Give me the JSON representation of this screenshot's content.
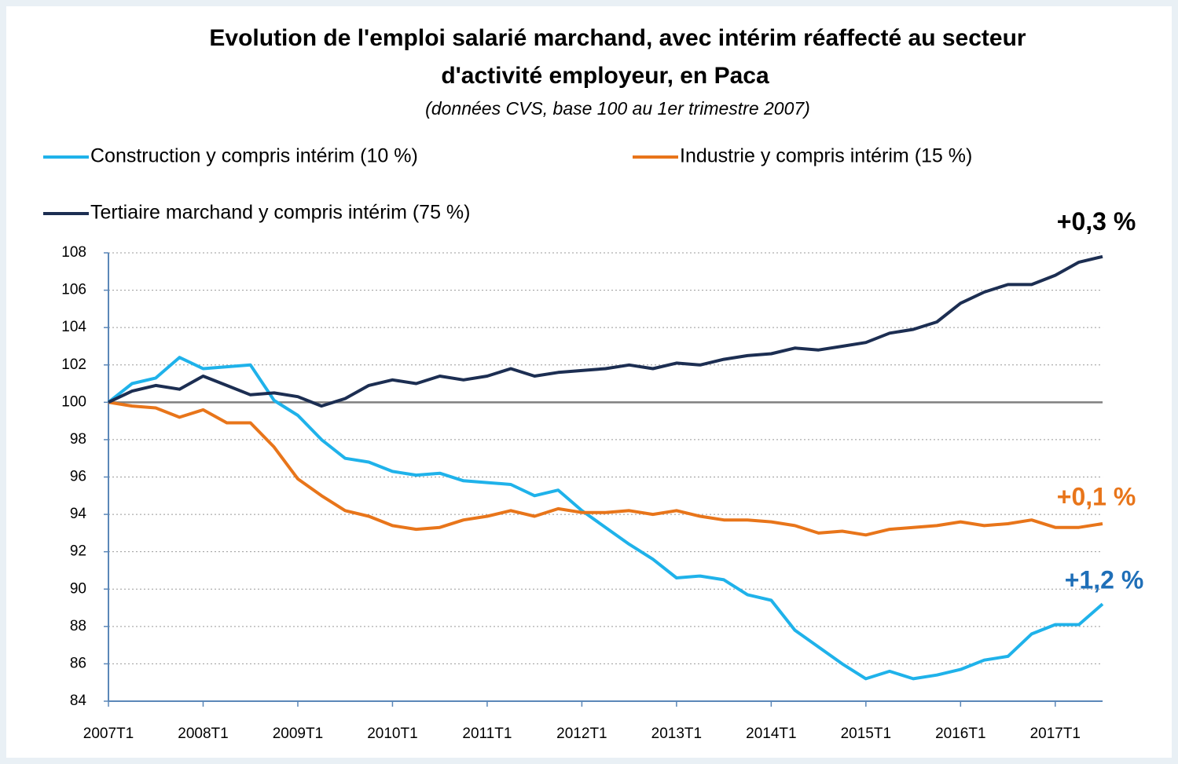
{
  "chart_data": {
    "type": "line",
    "title": "Evolution de l'emploi salarié marchand, avec intérim réaffecté au secteur",
    "title_line2": "d'activité employeur, en Paca",
    "subtitle": "(données CVS, base 100 au 1er trimestre 2007)",
    "categories": [
      "2007T1",
      null,
      null,
      null,
      "2008T1",
      null,
      null,
      null,
      "2009T1",
      null,
      null,
      null,
      "2010T1",
      null,
      null,
      null,
      "2011T1",
      null,
      null,
      null,
      "2012T1",
      null,
      null,
      null,
      "2013T1",
      null,
      null,
      null,
      "2014T1",
      null,
      null,
      null,
      "2015T1",
      null,
      null,
      null,
      "2016T1",
      null,
      null,
      null,
      "2017T1",
      null,
      null
    ],
    "series": [
      {
        "name": "Construction y  compris intérim (10 %)",
        "color": "#1fb2ea",
        "end_label": "+1,2 %",
        "end_label_color": "#1f6fb8",
        "values": [
          100,
          101.0,
          101.3,
          102.4,
          101.8,
          101.9,
          102.0,
          100.1,
          99.3,
          98.0,
          97.0,
          96.8,
          96.3,
          96.1,
          96.2,
          95.8,
          95.7,
          95.6,
          95.0,
          95.3,
          94.2,
          93.3,
          92.4,
          91.6,
          90.6,
          90.7,
          90.5,
          89.7,
          89.4,
          87.8,
          86.9,
          86.0,
          85.2,
          85.6,
          85.2,
          85.4,
          85.7,
          86.2,
          86.4,
          87.6,
          88.1,
          88.1,
          89.2
        ]
      },
      {
        "name": "Industrie y compris intérim (15 %)",
        "color": "#e8751a",
        "end_label": "+0,1 %",
        "end_label_color": "#e8751a",
        "values": [
          100,
          99.8,
          99.7,
          99.2,
          99.6,
          98.9,
          98.9,
          97.6,
          95.9,
          95.0,
          94.2,
          93.9,
          93.4,
          93.2,
          93.3,
          93.7,
          93.9,
          94.2,
          93.9,
          94.3,
          94.1,
          94.1,
          94.2,
          94.0,
          94.2,
          93.9,
          93.7,
          93.7,
          93.6,
          93.4,
          93.0,
          93.1,
          92.9,
          93.2,
          93.3,
          93.4,
          93.6,
          93.4,
          93.5,
          93.7,
          93.3,
          93.3,
          93.5
        ]
      },
      {
        "name": "Tertiaire marchand y compris intérim (75 %)",
        "color": "#1c2e52",
        "end_label": "+0,3 %",
        "end_label_color": "#000000",
        "values": [
          100,
          100.6,
          100.9,
          100.7,
          101.4,
          100.9,
          100.4,
          100.5,
          100.3,
          99.8,
          100.2,
          100.9,
          101.2,
          101.0,
          101.4,
          101.2,
          101.4,
          101.8,
          101.4,
          101.6,
          101.7,
          101.8,
          102.0,
          101.8,
          102.1,
          102.0,
          102.3,
          102.5,
          102.6,
          102.9,
          102.8,
          103.0,
          103.2,
          103.7,
          103.9,
          104.3,
          105.3,
          105.9,
          106.3,
          106.3,
          106.8,
          107.5,
          107.8
        ]
      }
    ],
    "reference_line": 100,
    "ylim": [
      84,
      108
    ],
    "yticks": [
      84,
      86,
      88,
      90,
      92,
      94,
      96,
      98,
      100,
      102,
      104,
      106,
      108
    ],
    "grid": true
  }
}
